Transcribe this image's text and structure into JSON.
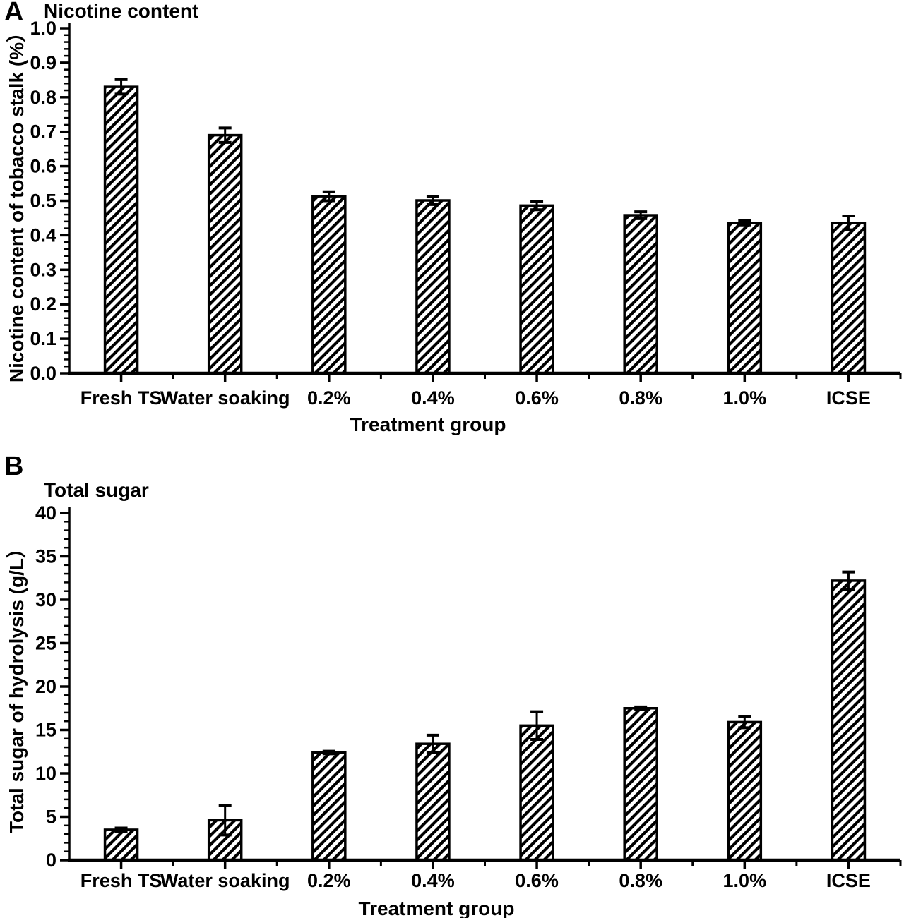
{
  "figure": {
    "background": "#ffffff",
    "ink": "#000000"
  },
  "chart_data": [
    {
      "type": "bar",
      "panel_label": "A",
      "title": "Nicotine content",
      "xlabel": "Treatment group",
      "ylabel": "Nicotine content of tobacco stalk (%）",
      "categories": [
        "Fresh TS",
        "Water soaking",
        "0.2%",
        "0.4%",
        "0.6%",
        "0.8%",
        "1.0%",
        "ICSE"
      ],
      "values": [
        0.83,
        0.69,
        0.513,
        0.501,
        0.486,
        0.458,
        0.436,
        0.436
      ],
      "errors": [
        0.021,
        0.021,
        0.013,
        0.012,
        0.012,
        0.01,
        0.006,
        0.02
      ],
      "ylim": [
        0,
        1.0
      ],
      "ytick_step": 0.1,
      "yticks": [
        "0.0",
        "0.1",
        "0.2",
        "0.3",
        "0.4",
        "0.5",
        "0.6",
        "0.7",
        "0.8",
        "0.9",
        "1.0"
      ],
      "minor_ticks_per_interval": 4,
      "grid": false,
      "legend": "none",
      "bar_style": "white fill with black forward-diagonal hatch",
      "error_bars": "symmetric, capped"
    },
    {
      "type": "bar",
      "panel_label": "B",
      "title": "Total sugar",
      "xlabel": "Treatment group",
      "ylabel": "Total sugar of hydrolysis (g/L）",
      "categories": [
        "Fresh TS",
        "Water soaking",
        "0.2%",
        "0.4%",
        "0.6%",
        "0.8%",
        "1.0%",
        "ICSE"
      ],
      "values": [
        3.5,
        4.6,
        12.4,
        13.4,
        15.5,
        17.5,
        15.9,
        32.2
      ],
      "errors": [
        0.2,
        1.7,
        0.15,
        1.0,
        1.6,
        0.15,
        0.65,
        1.0
      ],
      "ylim": [
        0,
        40
      ],
      "ytick_step": 5,
      "yticks": [
        "0",
        "5",
        "10",
        "15",
        "20",
        "25",
        "30",
        "35",
        "40"
      ],
      "minor_ticks_per_interval": 4,
      "grid": false,
      "legend": "none",
      "bar_style": "white fill with black forward-diagonal hatch",
      "error_bars": "symmetric, capped"
    }
  ]
}
